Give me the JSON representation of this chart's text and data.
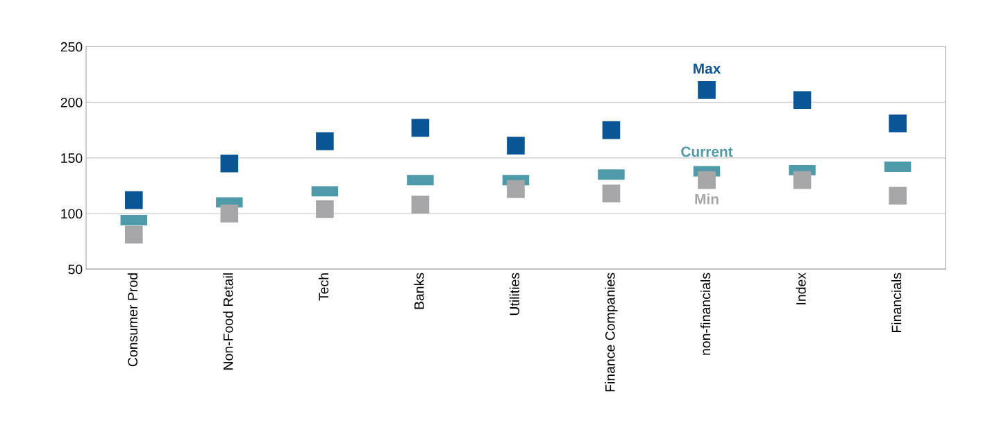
{
  "chart_data": {
    "type": "scatter",
    "categories": [
      "Consumer Prod",
      "Non-Food Retail",
      "Tech",
      "Banks",
      "Utilities",
      "Finance Companies",
      "non-financials",
      "Index",
      "Financials"
    ],
    "series": [
      {
        "name": "Max",
        "color": "#0a5596",
        "marker": "square",
        "values": [
          112,
          145,
          165,
          177,
          161,
          175,
          211,
          202,
          181
        ]
      },
      {
        "name": "Current",
        "color": "#4f9aa8",
        "values": [
          94,
          110,
          120,
          130,
          130,
          135,
          138,
          139,
          142
        ]
      },
      {
        "name": "Min",
        "color": "#a6a6a8",
        "marker": "square",
        "values": [
          81,
          100,
          104,
          108,
          122,
          118,
          130,
          130,
          116
        ]
      }
    ],
    "ylim": [
      50,
      250
    ],
    "yticks": [
      50,
      100,
      150,
      200,
      250
    ],
    "grid": "y"
  }
}
